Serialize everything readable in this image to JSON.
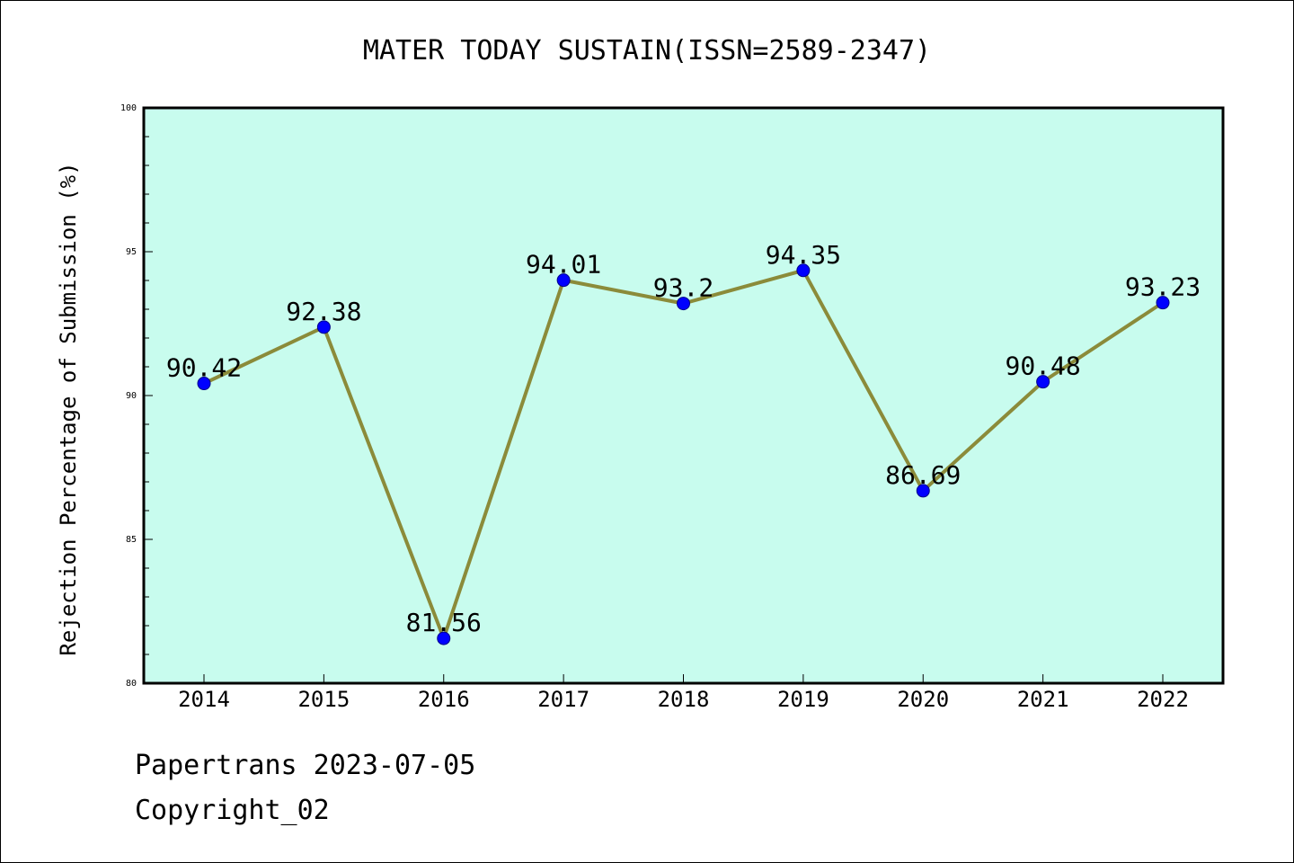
{
  "chart_data": {
    "type": "line",
    "title": "MATER TODAY SUSTAIN(ISSN=2589-2347)",
    "xlabel": "",
    "ylabel": "Rejection Percentage of Submission (%)",
    "categories": [
      "2014",
      "2015",
      "2016",
      "2017",
      "2018",
      "2019",
      "2020",
      "2021",
      "2022"
    ],
    "series": [
      {
        "values": [
          90.42,
          92.38,
          81.56,
          94.01,
          93.2,
          94.35,
          86.69,
          90.48,
          93.23
        ]
      }
    ],
    "data_labels": [
      "90.42",
      "92.38",
      "81.56",
      "94.01",
      "93.2",
      "94.35",
      "86.69",
      "90.48",
      "93.23"
    ],
    "ylim": [
      80,
      100
    ],
    "y_ticks": [
      80,
      85,
      90,
      95,
      100
    ],
    "y_tick_labels": [
      "80",
      "85",
      "90",
      "95",
      "100"
    ],
    "grid": false,
    "colors": {
      "plot_background": "#c8fcee",
      "line": "#8b8b3a",
      "marker": "#0000ff",
      "marker_edge": "#00008b"
    }
  },
  "footer": {
    "line1": "Papertrans 2023-07-05",
    "line2": "Copyright_02"
  }
}
